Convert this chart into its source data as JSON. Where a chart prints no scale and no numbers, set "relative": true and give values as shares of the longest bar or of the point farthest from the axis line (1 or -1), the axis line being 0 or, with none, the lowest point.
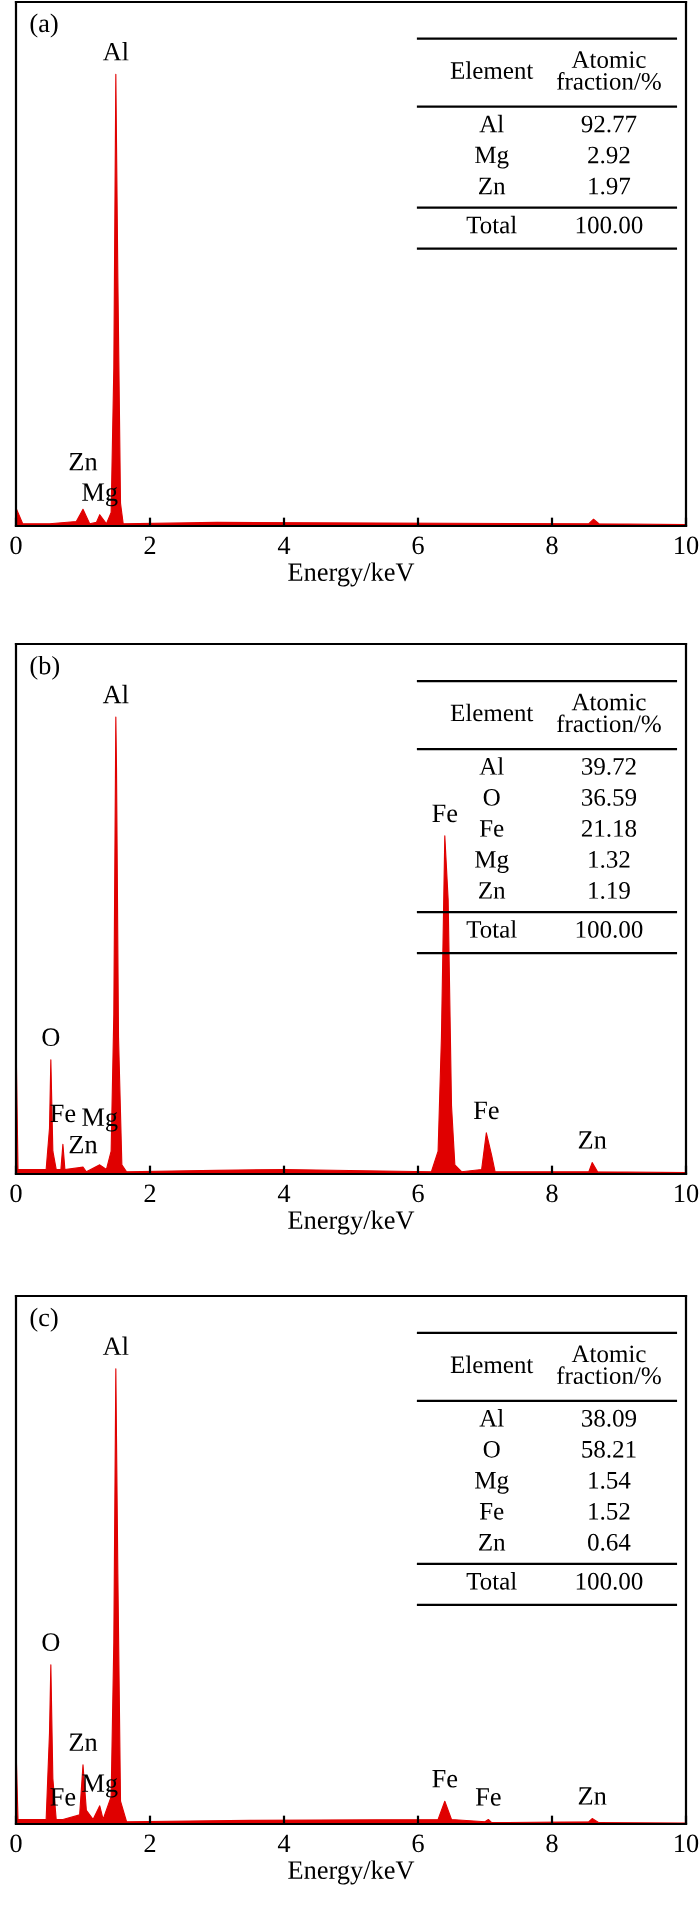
{
  "chart_data": [
    {
      "type": "area",
      "relative": true,
      "xlabel": "Energy/keV",
      "xlim": [
        0,
        10
      ],
      "xticks": [
        0,
        2,
        4,
        6,
        8,
        10
      ],
      "tick_labels": "x",
      "grid": false,
      "legend": false,
      "series": [
        {
          "color": "#e00000",
          "x": [
            0,
            0.1,
            0.5,
            0.9,
            1.0,
            1.1,
            1.2,
            1.25,
            1.35,
            1.42,
            1.46,
            1.49,
            1.52,
            1.56,
            1.6,
            3,
            8.55,
            8.62,
            8.7,
            10
          ],
          "values": [
            0.04,
            0.005,
            0.005,
            0.01,
            0.037,
            0.005,
            0.008,
            0.025,
            0.005,
            0.03,
            0.35,
            1.0,
            0.55,
            0.05,
            0.005,
            0.008,
            0.005,
            0.015,
            0.005,
            0.003
          ]
        }
      ],
      "annotations": [
        "(a)",
        "Element",
        "Atomic\nfraction/%",
        "Al",
        "92.77",
        "Mg",
        "2.92",
        "Zn",
        "1.97",
        "Total",
        "100.00",
        {
          "text": "Al",
          "x": 1.49,
          "y": 1.0
        },
        {
          "text": "Mg",
          "x": 1.25,
          "y": 0.025
        },
        {
          "text": "Zn",
          "x": 1.0,
          "y": 0.037
        }
      ]
    },
    {
      "type": "area",
      "relative": true,
      "xlabel": "Energy/keV",
      "xlim": [
        0,
        10
      ],
      "xticks": [
        0,
        2,
        4,
        6,
        8,
        10
      ],
      "tick_labels": "x",
      "grid": false,
      "legend": false,
      "series": [
        {
          "color": "#e00000",
          "x": [
            0,
            0.03,
            0.45,
            0.5,
            0.52,
            0.55,
            0.6,
            0.67,
            0.7,
            0.73,
            1.0,
            1.05,
            1.25,
            1.35,
            1.42,
            1.46,
            1.49,
            1.5,
            1.53,
            1.58,
            1.65,
            3,
            4,
            6.2,
            6.3,
            6.35,
            6.4,
            6.45,
            6.5,
            6.55,
            6.65,
            6.95,
            7.02,
            7.1,
            7.15,
            8.55,
            8.6,
            8.68,
            10
          ],
          "values": [
            0.3,
            0.01,
            0.01,
            0.1,
            0.25,
            0.05,
            0.01,
            0.01,
            0.065,
            0.01,
            0.015,
            0.005,
            0.02,
            0.01,
            0.05,
            0.35,
            1.0,
            0.89,
            0.3,
            0.02,
            0.005,
            0.008,
            0.01,
            0.005,
            0.05,
            0.3,
            0.74,
            0.6,
            0.15,
            0.02,
            0.005,
            0.01,
            0.09,
            0.04,
            0.005,
            0.005,
            0.025,
            0.005,
            0.003
          ]
        }
      ],
      "annotations": [
        "(b)",
        "Element",
        "Atomic\nfraction/%",
        "Al",
        "39.72",
        "O",
        "36.59",
        "Fe",
        "21.18",
        "Mg",
        "1.32",
        "Zn",
        "1.19",
        "Total",
        "100.00",
        {
          "text": "Al",
          "x": 1.49,
          "y": 1.0
        },
        {
          "text": "Zn",
          "x": 1.0,
          "y": 0.015
        },
        {
          "text": "Fe",
          "x": 0.7,
          "y": 0.065
        },
        {
          "text": "O",
          "x": 0.52,
          "y": 0.25
        },
        {
          "text": "Mg",
          "x": 1.25,
          "y": 0.02
        },
        {
          "text": "Fe",
          "x": 6.4,
          "y": 0.74
        },
        {
          "text": "Fe",
          "x": 7.02,
          "y": 0.09
        },
        {
          "text": "Zn",
          "x": 8.6,
          "y": 0.025
        }
      ]
    },
    {
      "type": "area",
      "relative": true,
      "xlabel": "Energy/keV",
      "xlim": [
        0,
        10
      ],
      "xticks": [
        0,
        2,
        4,
        6,
        8,
        10
      ],
      "tick_labels": "x",
      "grid": false,
      "legend": false,
      "series": [
        {
          "color": "#e00000",
          "x": [
            0,
            0.03,
            0.45,
            0.5,
            0.52,
            0.55,
            0.6,
            0.7,
            0.95,
            1.0,
            1.05,
            1.15,
            1.25,
            1.3,
            1.42,
            1.46,
            1.49,
            1.52,
            1.56,
            1.65,
            3.5,
            6.3,
            6.4,
            6.5,
            7.0,
            7.05,
            7.1,
            8.55,
            8.6,
            8.7,
            10
          ],
          "values": [
            0.17,
            0.01,
            0.01,
            0.2,
            0.35,
            0.1,
            0.01,
            0.01,
            0.02,
            0.13,
            0.03,
            0.01,
            0.04,
            0.01,
            0.06,
            0.4,
            1.0,
            0.55,
            0.05,
            0.005,
            0.008,
            0.01,
            0.05,
            0.01,
            0.005,
            0.01,
            0.003,
            0.005,
            0.012,
            0.003,
            0.002
          ]
        }
      ],
      "annotations": [
        "(c)",
        "Element",
        "Atomic\nfraction/%",
        "Al",
        "38.09",
        "O",
        "58.21",
        "Mg",
        "1.54",
        "Fe",
        "1.52",
        "Zn",
        "0.64",
        "Total",
        "100.00",
        {
          "text": "Al",
          "x": 1.49,
          "y": 1.0
        },
        {
          "text": "O",
          "x": 0.52,
          "y": 0.35
        },
        {
          "text": "Fe",
          "x": 0.7,
          "y": 0.01
        },
        {
          "text": "Mg",
          "x": 1.25,
          "y": 0.04
        },
        {
          "text": "Zn",
          "x": 1.0,
          "y": 0.13
        },
        {
          "text": "Fe",
          "x": 6.4,
          "y": 0.05
        },
        {
          "text": "Fe",
          "x": 7.05,
          "y": 0.01
        },
        {
          "text": "Zn",
          "x": 8.6,
          "y": 0.012
        }
      ]
    }
  ]
}
